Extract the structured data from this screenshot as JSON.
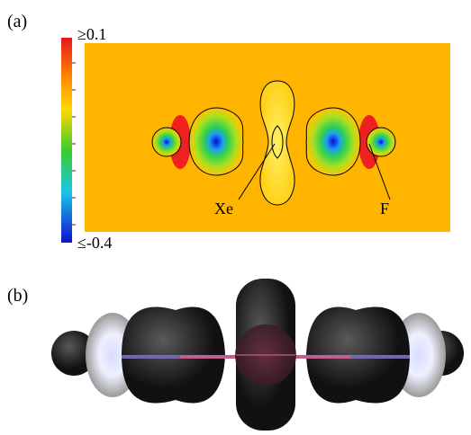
{
  "panel_a": {
    "label": "(a)",
    "colorbar": {
      "max_label": "≥0.1",
      "min_label": "≤-0.4"
    },
    "annotations": [
      "Xe",
      "F"
    ]
  },
  "panel_b": {
    "label": "(b)"
  }
}
